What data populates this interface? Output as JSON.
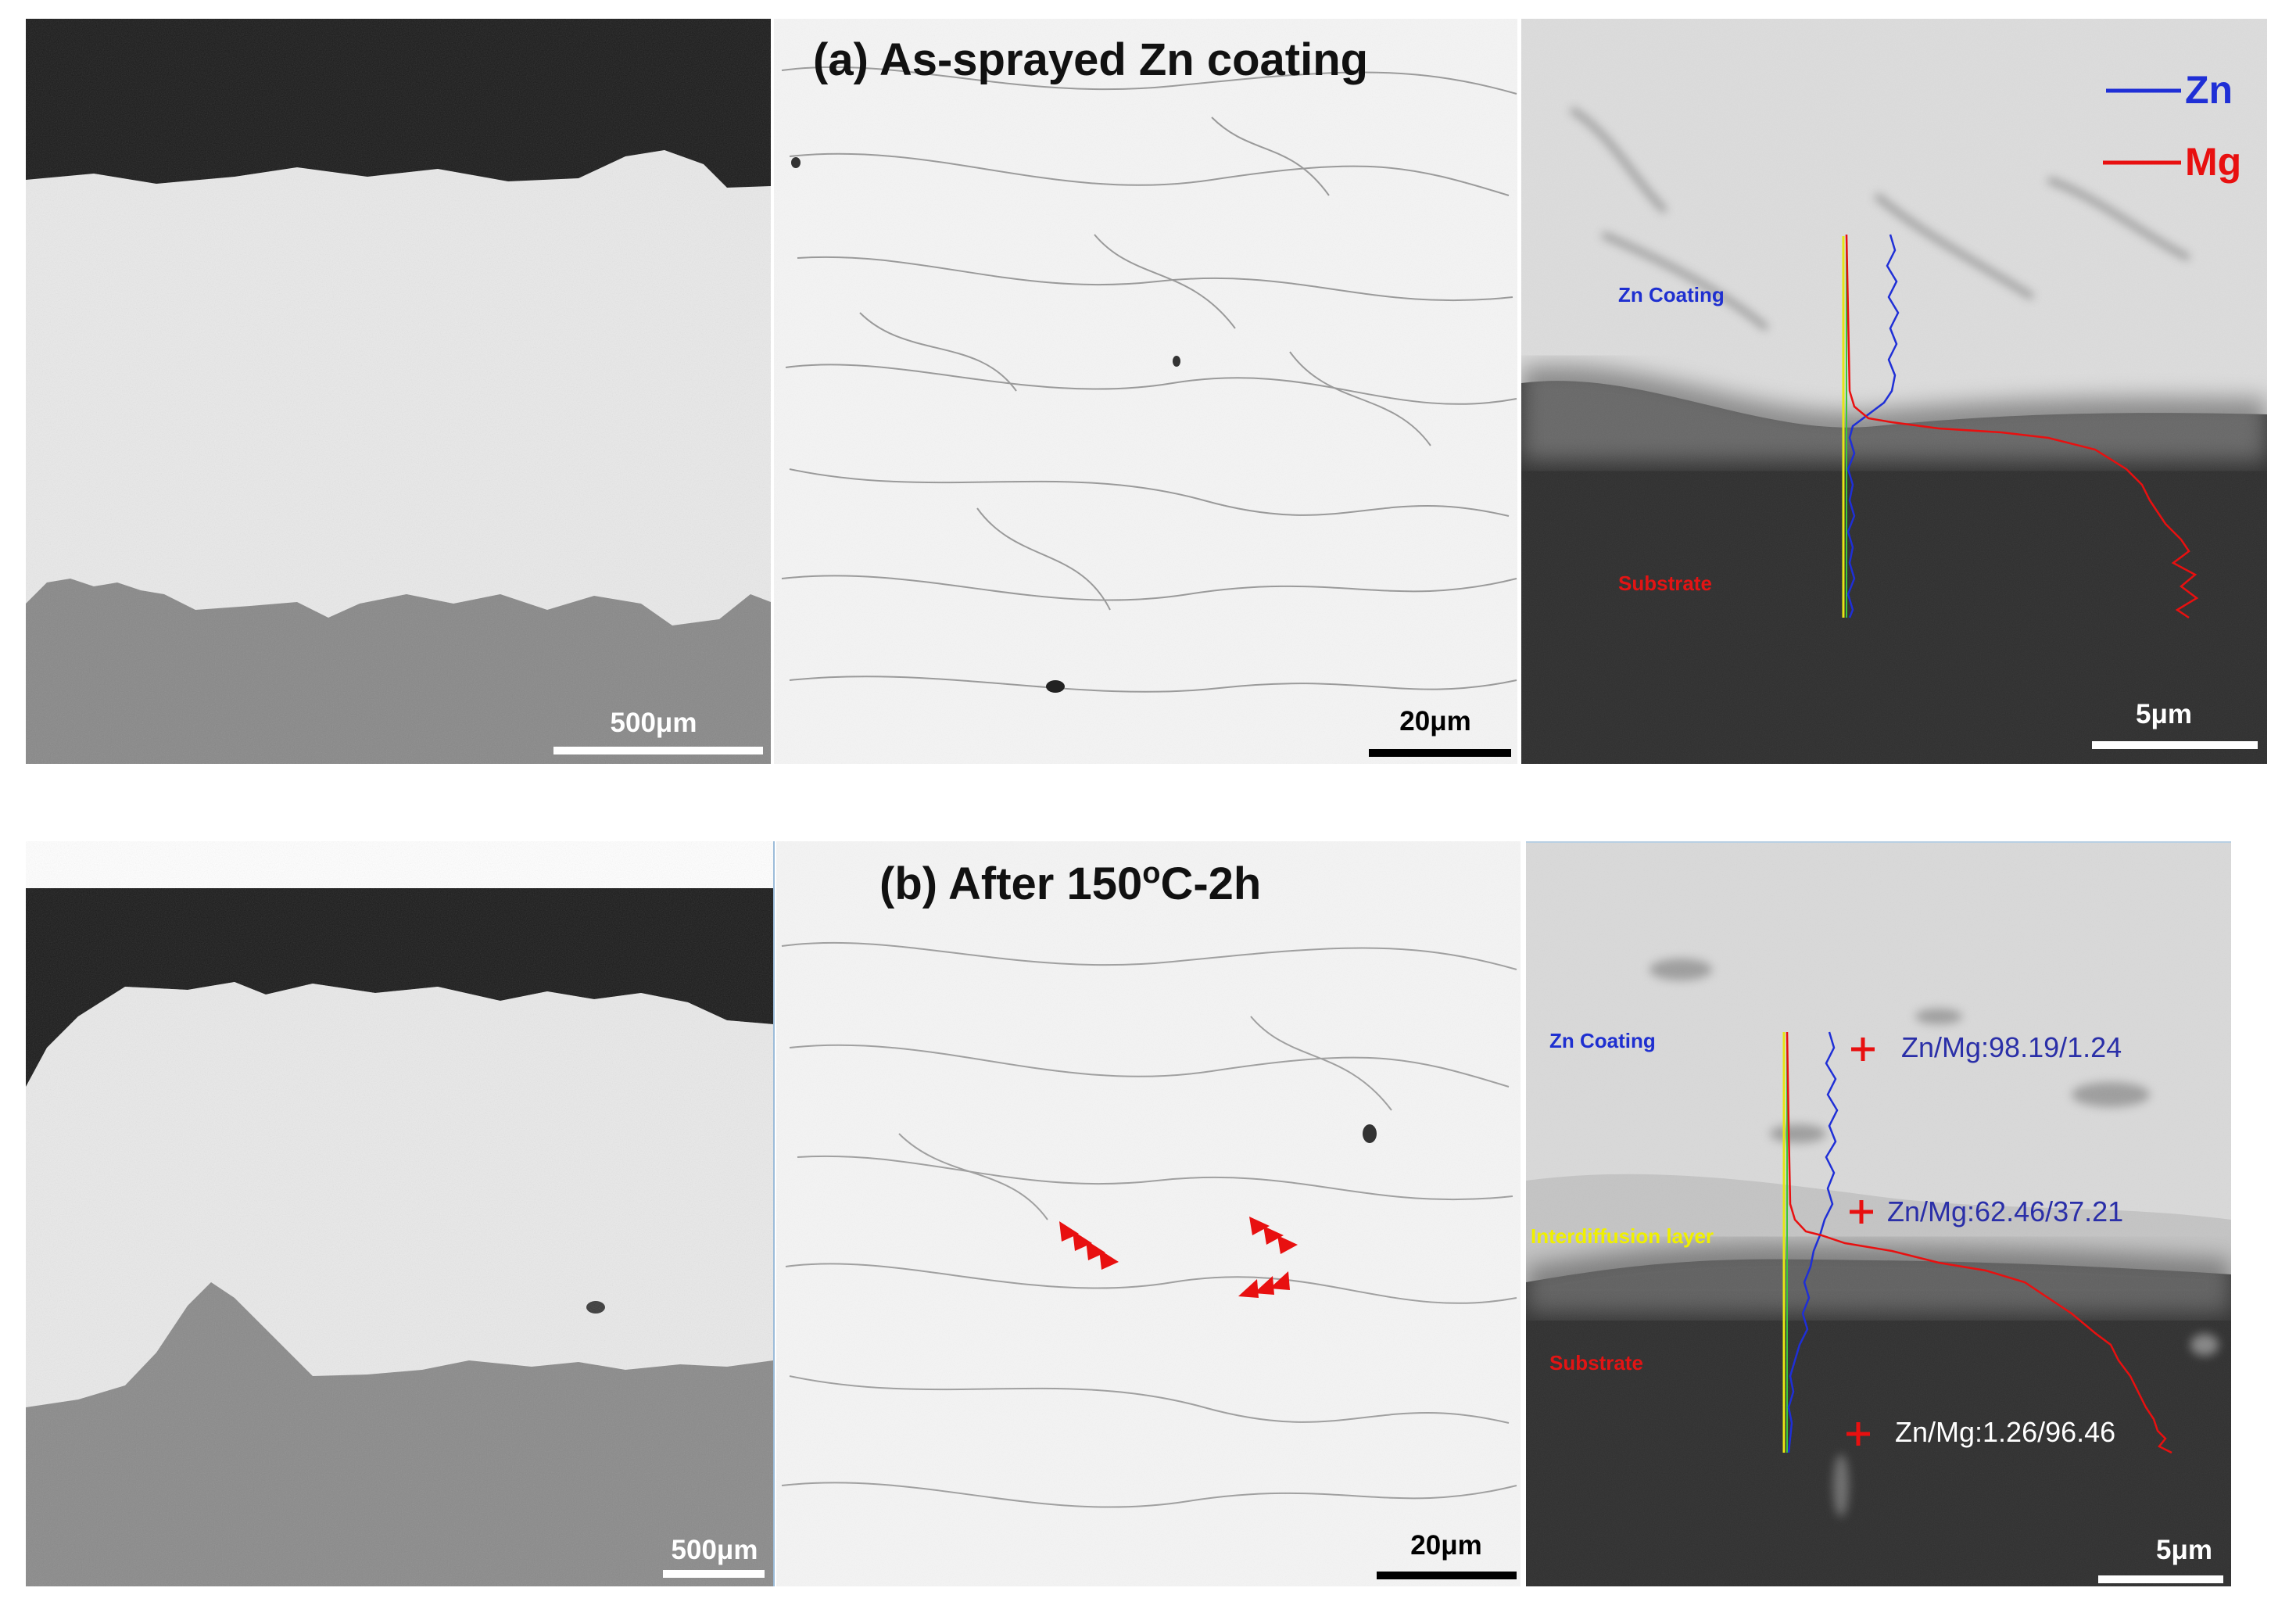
{
  "figure": {
    "row_a": {
      "title": "(a) As-sprayed Zn coating",
      "scale_overview": "500μm",
      "scale_micro": "20μm",
      "scale_linescan": "5μm",
      "legend": [
        {
          "label": "Zn",
          "color": "#1f2fd6"
        },
        {
          "label": "Mg",
          "color": "#e81010"
        }
      ],
      "region_coating": "Zn Coating",
      "region_substrate": "Substrate"
    },
    "row_b": {
      "title_prefix": "(b) After 150",
      "title_sup": "o",
      "title_suffix": "C-2h",
      "scale_overview": "500μm",
      "scale_micro": "20μm",
      "scale_linescan": "5μm",
      "region_coating": "Zn Coating",
      "region_interdiffusion": "Interdiffusion layer",
      "region_substrate": "Substrate",
      "points": [
        {
          "label": "Zn/Mg:98.19/1.24"
        },
        {
          "label": "Zn/Mg:62.46/37.21"
        },
        {
          "label": "Zn/Mg:1.26/96.46"
        }
      ]
    },
    "colors": {
      "zn_line": "#1f2fd6",
      "mg_line": "#e81010",
      "yellow_line": "#e6e614",
      "green_line": "#39c83a",
      "marker": "#e81010",
      "ratio_text": "#2a2fa8",
      "coating_label": "#1e2fd0",
      "substrate_label": "#e21414",
      "interdiffusion_label": "#f0f000"
    }
  }
}
